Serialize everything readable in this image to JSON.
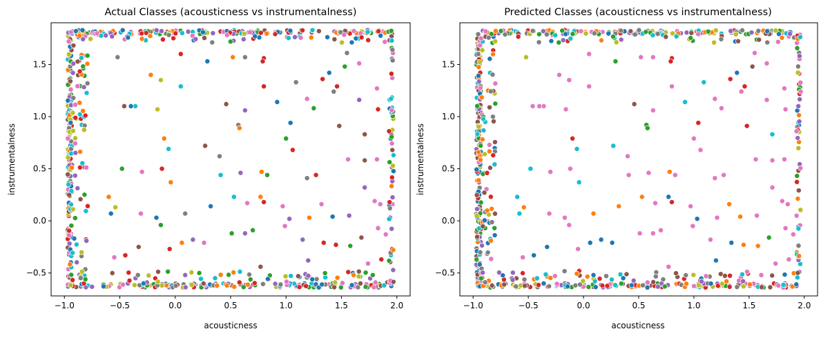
{
  "colors": {
    "palette": [
      "#1f77b4",
      "#ff7f0e",
      "#2ca02c",
      "#d62728",
      "#9467bd",
      "#8c564b",
      "#e377c2",
      "#7f7f7f",
      "#bcbd22",
      "#17becf"
    ]
  },
  "chart_data": [
    {
      "type": "scatter",
      "title": "Actual Classes (acousticness vs instrumentalness)",
      "xlabel": "acousticness",
      "ylabel": "instrumentalness",
      "xlim": [
        -1.12,
        2.12
      ],
      "ylim": [
        -0.72,
        1.9
      ],
      "xticks": [
        -1.0,
        -0.5,
        0.0,
        0.5,
        1.0,
        1.5,
        2.0
      ],
      "xtick_labels": [
        "−1.0",
        "−0.5",
        "0.0",
        "0.5",
        "1.0",
        "1.5",
        "2.0"
      ],
      "yticks": [
        -0.5,
        0.0,
        0.5,
        1.0,
        1.5
      ],
      "ytick_labels": [
        "−0.5",
        "0.0",
        "0.5",
        "1.0",
        "1.5"
      ],
      "grid": false,
      "legend": "none",
      "seed": 11,
      "points": [
        [
          -0.52,
          1.57,
          7
        ],
        [
          -0.36,
          1.1,
          9
        ],
        [
          -0.4,
          1.1,
          0
        ],
        [
          -0.13,
          1.35,
          8
        ],
        [
          -0.1,
          0.79,
          1
        ],
        [
          -0.06,
          0.69,
          9
        ],
        [
          0.29,
          1.53,
          0
        ],
        [
          0.52,
          1.57,
          1
        ],
        [
          0.63,
          1.57,
          7
        ],
        [
          0.8,
          1.56,
          3
        ],
        [
          0.8,
          1.29,
          3
        ],
        [
          0.79,
          1.53,
          3
        ],
        [
          0.46,
          1.12,
          5
        ],
        [
          0.63,
          1.06,
          4
        ],
        [
          0.57,
          0.92,
          7
        ],
        [
          0.58,
          0.89,
          1
        ],
        [
          0.27,
          0.72,
          5
        ],
        [
          0.4,
          0.62,
          7
        ],
        [
          0.59,
          0.46,
          4
        ],
        [
          0.78,
          0.47,
          1
        ],
        [
          0.83,
          0.44,
          2
        ],
        [
          0.92,
          1.14,
          0
        ],
        [
          1.09,
          1.33,
          7
        ],
        [
          1.19,
          1.17,
          6
        ],
        [
          1.25,
          1.08,
          2
        ],
        [
          1.06,
          0.68,
          3
        ],
        [
          1.19,
          0.41,
          7
        ],
        [
          1.33,
          1.36,
          3
        ],
        [
          1.39,
          1.42,
          0
        ],
        [
          1.53,
          1.48,
          2
        ],
        [
          1.43,
          1.24,
          7
        ],
        [
          1.46,
          1.29,
          3
        ],
        [
          1.66,
          1.51,
          6
        ],
        [
          1.82,
          1.27,
          6
        ],
        [
          1.83,
          1.07,
          3
        ],
        [
          1.93,
          0.86,
          3
        ],
        [
          1.71,
          0.83,
          5
        ],
        [
          1.71,
          0.58,
          5
        ],
        [
          1.56,
          0.59,
          6
        ],
        [
          1.82,
          0.59,
          6
        ],
        [
          1.48,
          0.91,
          5
        ],
        [
          1.0,
          0.79,
          2
        ],
        [
          1.04,
          0.94,
          0
        ],
        [
          0.05,
          1.29,
          9
        ],
        [
          -0.12,
          0.5,
          3
        ],
        [
          -0.3,
          0.47,
          6
        ],
        [
          -0.04,
          0.37,
          1
        ],
        [
          -0.48,
          0.5,
          2
        ],
        [
          0.09,
          0.07,
          7
        ],
        [
          0.32,
          0.14,
          0
        ],
        [
          0.53,
          0.23,
          9
        ],
        [
          0.65,
          0.17,
          6
        ],
        [
          0.77,
          0.23,
          1
        ],
        [
          0.8,
          0.18,
          3
        ],
        [
          0.97,
          0.14,
          6
        ],
        [
          1.03,
          0.02,
          4
        ],
        [
          1.21,
          0.03,
          1
        ],
        [
          1.32,
          0.16,
          6
        ],
        [
          1.42,
          0.04,
          0
        ],
        [
          1.57,
          0.05,
          4
        ],
        [
          1.71,
          0.32,
          4
        ],
        [
          1.8,
          0.19,
          6
        ],
        [
          1.85,
          0.16,
          6
        ],
        [
          1.9,
          -0.13,
          6
        ],
        [
          -0.58,
          0.07,
          0
        ],
        [
          -0.54,
          0.13,
          8
        ],
        [
          -0.31,
          0.07,
          6
        ],
        [
          -0.17,
          0.03,
          0
        ],
        [
          -0.13,
          -0.04,
          2
        ],
        [
          0.16,
          -0.18,
          4
        ],
        [
          0.26,
          -0.21,
          6
        ],
        [
          0.06,
          -0.21,
          1
        ],
        [
          0.51,
          -0.12,
          2
        ],
        [
          0.63,
          -0.12,
          4
        ],
        [
          0.7,
          -0.09,
          2
        ],
        [
          0.99,
          -0.05,
          6
        ],
        [
          1.15,
          -0.18,
          4
        ],
        [
          1.34,
          -0.21,
          3
        ],
        [
          1.45,
          -0.23,
          3
        ],
        [
          1.58,
          -0.24,
          2
        ],
        [
          1.68,
          -0.16,
          5
        ],
        [
          1.83,
          -0.07,
          6
        ],
        [
          -0.55,
          -0.35,
          6
        ],
        [
          -0.45,
          -0.33,
          3
        ],
        [
          -0.33,
          -0.25,
          5
        ],
        [
          -0.05,
          -0.27,
          3
        ],
        [
          0.09,
          -0.52,
          4
        ],
        [
          0.36,
          -0.55,
          9
        ],
        [
          0.58,
          -0.59,
          3
        ],
        [
          0.77,
          -0.44,
          5
        ],
        [
          1.11,
          -0.53,
          5
        ],
        [
          1.2,
          -0.38,
          4
        ],
        [
          1.61,
          -0.52,
          1
        ],
        [
          1.74,
          -0.41,
          6
        ],
        [
          1.86,
          -0.37,
          3
        ],
        [
          -0.6,
          0.23,
          1
        ],
        [
          -0.46,
          1.1,
          5
        ],
        [
          -0.22,
          1.4,
          1
        ],
        [
          -0.16,
          1.07,
          8
        ],
        [
          0.05,
          1.6,
          3
        ],
        [
          0.41,
          0.44,
          9
        ],
        [
          1.27,
          0.44,
          3
        ],
        [
          1.66,
          1.16,
          4
        ],
        [
          1.55,
          1.61,
          7
        ]
      ]
    },
    {
      "type": "scatter",
      "title": "Predicted Classes (acousticness vs instrumentalness)",
      "xlabel": "acousticness",
      "ylabel": "instrumentalness",
      "xlim": [
        -1.12,
        2.12
      ],
      "ylim": [
        -0.72,
        1.9
      ],
      "xticks": [
        -1.0,
        -0.5,
        0.0,
        0.5,
        1.0,
        1.5,
        2.0
      ],
      "xtick_labels": [
        "−1.0",
        "−0.5",
        "0.0",
        "0.5",
        "1.0",
        "1.5",
        "2.0"
      ],
      "yticks": [
        -0.5,
        0.0,
        0.5,
        1.0,
        1.5
      ],
      "ytick_labels": [
        "−0.5",
        "0.0",
        "0.5",
        "1.0",
        "1.5"
      ],
      "grid": false,
      "legend": "none",
      "seed": 29,
      "points": [
        [
          -0.52,
          1.57,
          8
        ],
        [
          -0.36,
          1.1,
          6
        ],
        [
          -0.4,
          1.1,
          6
        ],
        [
          -0.13,
          1.35,
          6
        ],
        [
          -0.1,
          0.79,
          3
        ],
        [
          -0.06,
          0.69,
          9
        ],
        [
          0.29,
          1.53,
          2
        ],
        [
          0.52,
          1.57,
          6
        ],
        [
          0.63,
          1.57,
          6
        ],
        [
          0.8,
          1.56,
          3
        ],
        [
          0.8,
          1.29,
          6
        ],
        [
          0.79,
          1.53,
          3
        ],
        [
          0.46,
          1.12,
          5
        ],
        [
          0.63,
          1.06,
          6
        ],
        [
          0.57,
          0.92,
          2
        ],
        [
          0.58,
          0.89,
          2
        ],
        [
          0.27,
          0.72,
          9
        ],
        [
          0.4,
          0.62,
          6
        ],
        [
          0.59,
          0.46,
          6
        ],
        [
          0.78,
          0.47,
          1
        ],
        [
          0.83,
          0.44,
          6
        ],
        [
          0.92,
          1.14,
          9
        ],
        [
          1.09,
          1.33,
          9
        ],
        [
          1.19,
          1.17,
          6
        ],
        [
          1.25,
          1.08,
          6
        ],
        [
          1.06,
          0.68,
          6
        ],
        [
          1.19,
          0.41,
          6
        ],
        [
          1.33,
          1.36,
          3
        ],
        [
          1.39,
          1.42,
          0
        ],
        [
          1.53,
          1.48,
          5
        ],
        [
          1.43,
          1.24,
          6
        ],
        [
          1.46,
          1.29,
          3
        ],
        [
          1.66,
          1.51,
          6
        ],
        [
          1.82,
          1.27,
          6
        ],
        [
          1.83,
          1.07,
          6
        ],
        [
          1.93,
          0.86,
          6
        ],
        [
          1.71,
          0.83,
          9
        ],
        [
          1.71,
          0.58,
          6
        ],
        [
          1.56,
          0.59,
          6
        ],
        [
          1.82,
          0.59,
          6
        ],
        [
          1.48,
          0.91,
          3
        ],
        [
          1.0,
          0.79,
          6
        ],
        [
          1.04,
          0.94,
          3
        ],
        [
          0.05,
          1.29,
          6
        ],
        [
          -0.12,
          0.5,
          6
        ],
        [
          -0.3,
          0.47,
          6
        ],
        [
          -0.04,
          0.37,
          9
        ],
        [
          -0.48,
          0.5,
          9
        ],
        [
          0.09,
          0.07,
          1
        ],
        [
          0.32,
          0.14,
          1
        ],
        [
          0.53,
          0.23,
          1
        ],
        [
          0.65,
          0.17,
          6
        ],
        [
          0.77,
          0.23,
          0
        ],
        [
          0.8,
          0.18,
          3
        ],
        [
          0.97,
          0.14,
          6
        ],
        [
          1.03,
          0.02,
          0
        ],
        [
          1.21,
          0.03,
          6
        ],
        [
          1.32,
          0.16,
          1
        ],
        [
          1.42,
          0.04,
          1
        ],
        [
          1.57,
          0.05,
          6
        ],
        [
          1.71,
          0.32,
          6
        ],
        [
          1.8,
          0.19,
          6
        ],
        [
          1.85,
          0.16,
          6
        ],
        [
          1.9,
          -0.13,
          6
        ],
        [
          -0.58,
          0.07,
          9
        ],
        [
          -0.54,
          0.13,
          1
        ],
        [
          -0.31,
          0.07,
          6
        ],
        [
          -0.17,
          0.03,
          6
        ],
        [
          -0.13,
          -0.04,
          6
        ],
        [
          0.16,
          -0.18,
          0
        ],
        [
          0.26,
          -0.21,
          0
        ],
        [
          0.06,
          -0.21,
          0
        ],
        [
          0.51,
          -0.12,
          6
        ],
        [
          0.63,
          -0.12,
          6
        ],
        [
          0.7,
          -0.09,
          6
        ],
        [
          0.99,
          -0.05,
          6
        ],
        [
          1.15,
          -0.18,
          6
        ],
        [
          1.34,
          -0.21,
          0
        ],
        [
          1.45,
          -0.23,
          1
        ],
        [
          1.58,
          -0.24,
          1
        ],
        [
          1.68,
          -0.16,
          2
        ],
        [
          1.83,
          -0.07,
          6
        ],
        [
          -0.55,
          -0.35,
          6
        ],
        [
          -0.45,
          -0.33,
          0
        ],
        [
          -0.33,
          -0.25,
          0
        ],
        [
          -0.05,
          -0.27,
          6
        ],
        [
          0.09,
          -0.52,
          0
        ],
        [
          0.36,
          -0.55,
          0
        ],
        [
          0.58,
          -0.59,
          6
        ],
        [
          0.77,
          -0.44,
          6
        ],
        [
          1.11,
          -0.53,
          6
        ],
        [
          1.2,
          -0.38,
          0
        ],
        [
          1.61,
          -0.52,
          6
        ],
        [
          1.74,
          -0.41,
          6
        ],
        [
          1.86,
          -0.37,
          6
        ],
        [
          -0.6,
          0.23,
          9
        ],
        [
          -0.46,
          1.1,
          6
        ],
        [
          -0.22,
          1.4,
          6
        ],
        [
          -0.16,
          1.07,
          6
        ],
        [
          0.05,
          1.6,
          6
        ],
        [
          0.41,
          0.44,
          6
        ],
        [
          1.27,
          0.44,
          6
        ],
        [
          1.66,
          1.16,
          6
        ],
        [
          1.55,
          1.61,
          6
        ]
      ]
    }
  ]
}
